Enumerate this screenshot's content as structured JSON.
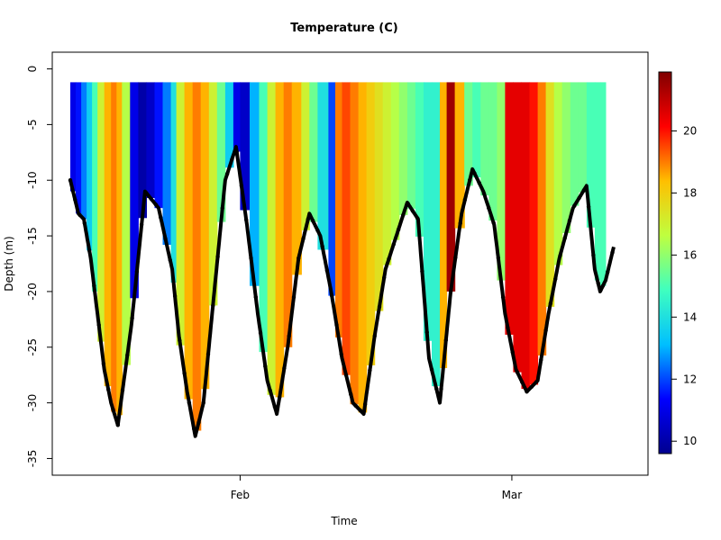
{
  "chart_data": {
    "type": "scatter",
    "title": "Temperature (C)",
    "xlabel": "Time",
    "ylabel": "Depth (m)",
    "ylim": [
      -36.5,
      1.5
    ],
    "x_ticks": [
      "Feb",
      "Mar"
    ],
    "y_ticks": [
      0,
      -5,
      -10,
      -15,
      -20,
      -25,
      -30,
      -35
    ],
    "colorbar": {
      "label": "Temperature (C)",
      "range": [
        9.6,
        21.9
      ],
      "ticks": [
        10,
        12,
        14,
        16,
        18,
        20
      ],
      "colormap": [
        "#00008f",
        "#0000ff",
        "#00bfff",
        "#3fffbf",
        "#bfff3f",
        "#ffbf00",
        "#ff0000",
        "#800000"
      ]
    },
    "time_range_days": [
      0,
      40
    ],
    "tick_positions_days": [
      12.5,
      32.5
    ],
    "bottom_depth_profile": {
      "x_days": [
        0.0,
        0.6,
        1.0,
        1.5,
        2.0,
        2.5,
        3.0,
        3.5,
        4.5,
        5.5,
        6.5,
        7.5,
        8.0,
        8.6,
        9.2,
        9.8,
        10.6,
        11.4,
        12.2,
        13.0,
        13.8,
        14.5,
        15.2,
        16.0,
        16.8,
        17.6,
        18.4,
        19.2,
        20.0,
        20.8,
        21.6,
        22.4,
        23.2,
        24.0,
        24.8,
        25.6,
        26.4,
        27.2,
        28.0,
        28.8,
        29.6,
        30.4,
        31.2,
        32.0,
        32.8,
        33.6,
        34.4,
        35.2,
        36.0,
        37.0,
        38.0,
        38.6,
        39.0,
        39.4,
        40.0
      ],
      "depth": [
        -10.0,
        -13.0,
        -13.5,
        -17.0,
        -22.0,
        -27.0,
        -30.0,
        -32.0,
        -23.0,
        -11.0,
        -12.5,
        -18.0,
        -24.0,
        -29.0,
        -33.0,
        -30.0,
        -20.0,
        -10.0,
        -7.0,
        -14.0,
        -22.0,
        -28.0,
        -31.0,
        -25.0,
        -17.0,
        -13.0,
        -15.0,
        -20.0,
        -26.0,
        -30.0,
        -31.0,
        -24.0,
        -18.0,
        -15.0,
        -12.0,
        -13.5,
        -26.0,
        -30.0,
        -20.0,
        -13.0,
        -9.0,
        -11.0,
        -14.0,
        -22.0,
        -27.0,
        -29.0,
        -28.0,
        -22.0,
        -17.0,
        -12.5,
        -10.5,
        -18.0,
        -20.0,
        -19.0,
        -16.0
      ]
    },
    "temperature_columns": {
      "x_days": [
        0.0,
        0.4,
        0.8,
        1.2,
        1.6,
        2.0,
        2.5,
        3.0,
        3.4,
        3.8,
        4.4,
        5.0,
        5.6,
        6.2,
        6.8,
        7.4,
        7.8,
        8.4,
        9.0,
        9.6,
        10.2,
        10.8,
        11.4,
        12.0,
        12.5,
        13.2,
        13.9,
        14.5,
        15.1,
        15.7,
        16.3,
        17.0,
        17.6,
        18.2,
        19.0,
        19.5,
        20.0,
        20.6,
        21.2,
        21.8,
        22.4,
        23.0,
        23.6,
        24.2,
        24.8,
        25.4,
        26.0,
        26.6,
        27.2,
        27.7,
        28.3,
        29.0,
        29.6,
        30.2,
        30.8,
        31.4,
        32.0,
        32.6,
        33.2,
        33.8,
        34.4,
        35.0,
        35.6,
        36.2,
        36.8,
        37.4,
        38.0,
        38.6,
        39.0
      ],
      "temperature": [
        11.0,
        11.5,
        12.5,
        13.5,
        15.0,
        17.0,
        18.5,
        19.0,
        18.5,
        16.5,
        11.0,
        10.0,
        10.5,
        11.5,
        12.5,
        14.0,
        17.0,
        18.5,
        19.0,
        18.5,
        17.0,
        15.5,
        13.5,
        11.0,
        10.5,
        13.0,
        15.0,
        17.0,
        18.5,
        19.0,
        18.5,
        17.0,
        15.5,
        14.0,
        12.0,
        19.0,
        19.5,
        19.0,
        18.5,
        18.0,
        17.5,
        17.0,
        16.5,
        16.0,
        15.5,
        15.0,
        14.5,
        14.5,
        18.5,
        21.5,
        18.5,
        15.5,
        15.0,
        15.5,
        15.5,
        16.0,
        20.5,
        20.5,
        20.5,
        20.0,
        19.0,
        17.5,
        16.5,
        16.0,
        15.5,
        15.5,
        15.0,
        15.0,
        15.0
      ]
    }
  }
}
